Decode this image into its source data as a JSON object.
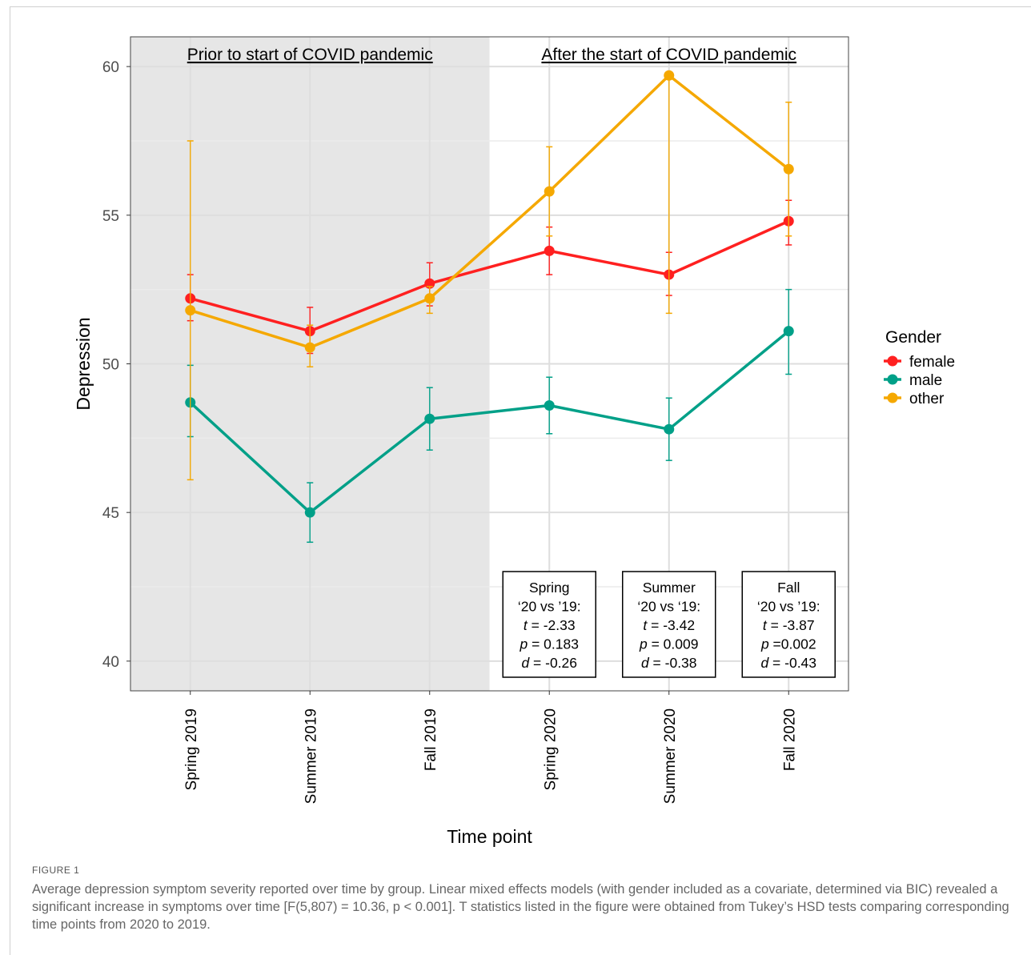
{
  "chart_data": {
    "type": "line",
    "xlabel": "Time point",
    "ylabel": "Depression",
    "categories": [
      "Spring 2019",
      "Summer 2019",
      "Fall 2019",
      "Spring 2020",
      "Summer 2020",
      "Fall 2020"
    ],
    "ylim": [
      39,
      61
    ],
    "yticks": [
      40,
      45,
      50,
      55,
      60
    ],
    "grid": true,
    "legend": {
      "title": "Gender",
      "position": "right"
    },
    "series": [
      {
        "name": "female",
        "color": "#ff2020",
        "values": [
          52.2,
          51.1,
          52.7,
          53.8,
          53.0,
          54.8
        ],
        "error_low": [
          51.45,
          50.35,
          51.95,
          53.0,
          52.3,
          54.0
        ],
        "error_high": [
          53.0,
          51.9,
          53.4,
          54.6,
          53.75,
          55.5
        ]
      },
      {
        "name": "male",
        "color": "#00a088",
        "values": [
          48.7,
          45.0,
          48.15,
          48.6,
          47.8,
          51.1
        ],
        "error_low": [
          47.55,
          44.0,
          47.1,
          47.65,
          46.75,
          49.65
        ],
        "error_high": [
          49.95,
          46.0,
          49.2,
          49.55,
          48.85,
          52.5
        ]
      },
      {
        "name": "other",
        "color": "#f5a800",
        "values": [
          51.8,
          50.55,
          52.2,
          55.8,
          59.7,
          56.55
        ],
        "error_low": [
          46.1,
          49.9,
          51.7,
          54.3,
          51.7,
          54.3
        ],
        "error_high": [
          57.5,
          51.3,
          52.6,
          57.3,
          59.7,
          58.8
        ]
      }
    ],
    "regions": [
      {
        "label": "Prior to start of COVID pandemic",
        "shaded": true
      },
      {
        "label": "After the start of COVID pandemic",
        "shaded": false
      }
    ],
    "annotations": [
      {
        "lines": [
          "Spring",
          "‘20 vs ’19:",
          "t = -2.33",
          "p = 0.183",
          "d = -0.26"
        ]
      },
      {
        "lines": [
          "Summer",
          "‘20 vs ‘19:",
          "t = -3.42",
          "p = 0.009",
          "d = -0.38"
        ]
      },
      {
        "lines": [
          "Fall",
          "‘20 vs ’19:",
          "t = -3.87",
          "p =0.002",
          "d = -0.43"
        ]
      }
    ]
  },
  "caption": {
    "label": "FIGURE 1",
    "text": "Average depression symptom severity reported over time by group. Linear mixed effects models (with gender included as a covariate, determined via BIC) revealed a significant increase in symptoms over time [F(5,807) = 10.36, p < 0.001]. T statistics listed in the figure were obtained from Tukey’s HSD tests comparing corresponding time points from 2020 to 2019."
  }
}
